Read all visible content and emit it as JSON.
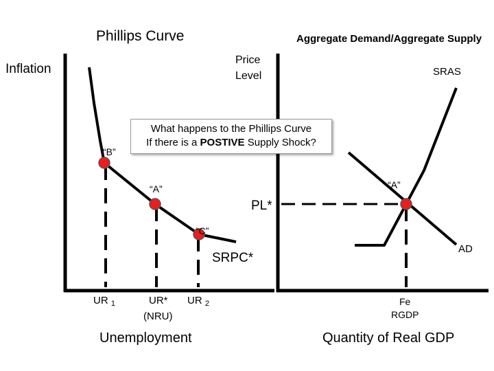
{
  "phillips": {
    "title": "Phillips Curve",
    "y_label": "Inflation",
    "x_label": "Unemployment",
    "points": {
      "b": "“B”",
      "a": "“A”",
      "c": "“C”"
    },
    "curve_label": "SRPC*",
    "ticks": {
      "ur1_main": "UR",
      "ur1_sub": "1",
      "urstar": "UR*",
      "nru": "(NRU)",
      "ur2_main": "UR",
      "ur2_sub": "2"
    }
  },
  "adas": {
    "title": "Aggregate Demand/Aggregate Supply",
    "y_label_line1": "Price",
    "y_label_line2": "Level",
    "sras_label": "SRAS",
    "ad_label": "AD",
    "point_a": "“A”",
    "pl_label": "PL*",
    "fe_line1": "Fe",
    "fe_line2": "RGDP",
    "x_label": "Quantity of Real GDP"
  },
  "question": {
    "line1": "What happens to the Phillips Curve",
    "line2_pre": "If there is a",
    "line2_bold": "POSTIVE",
    "line2_post": "Supply Shock?"
  },
  "colors": {
    "point": "#ee1c1c",
    "line": "#000000"
  }
}
